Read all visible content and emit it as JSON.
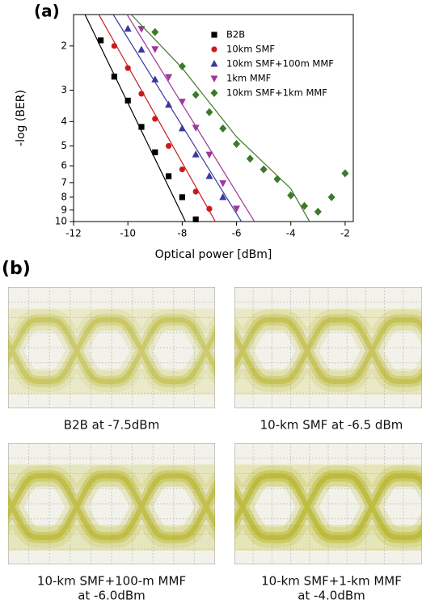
{
  "chart_data": {
    "type": "scatter",
    "panel_label": "(a)",
    "xlabel": "Optical power [dBm]",
    "ylabel": "-log (BER)",
    "xlim": [
      -12,
      -1.7
    ],
    "xticks": [
      -12,
      -10,
      -8,
      -6,
      -4,
      -2
    ],
    "ylim": [
      1.5,
      10
    ],
    "yticks": [
      2,
      3,
      4,
      5,
      6,
      7,
      8,
      9,
      10
    ],
    "log_scale": true,
    "y_inverted": true,
    "grid": false,
    "legend": "upper right",
    "series": [
      {
        "name": "B2B",
        "color": "#000000",
        "marker": "square",
        "x": [
          -11,
          -10.5,
          -10,
          -9.5,
          -9,
          -8.5,
          -8,
          -7.5
        ],
        "values": [
          1.9,
          2.65,
          3.3,
          4.2,
          5.3,
          6.6,
          8.0,
          9.8
        ],
        "fit_x": [
          -11.58,
          -7.88
        ],
        "fit_values": [
          1.5,
          10
        ]
      },
      {
        "name": "10km SMF",
        "color": "#cc1a1a",
        "marker": "circle",
        "x": [
          -10.5,
          -10,
          -9.5,
          -9,
          -8.5,
          -8,
          -7.5,
          -7
        ],
        "values": [
          2.0,
          2.45,
          3.1,
          3.9,
          5.0,
          6.2,
          7.6,
          8.9
        ],
        "fit_x": [
          -11.07,
          -6.78
        ],
        "fit_values": [
          1.5,
          10
        ]
      },
      {
        "name": "10km SMF+100m MMF",
        "color": "#3a3a9e",
        "marker": "triangle-up",
        "x": [
          -10,
          -9.5,
          -9,
          -8.5,
          -8,
          -7.5,
          -7,
          -6.5
        ],
        "values": [
          1.71,
          2.07,
          2.72,
          3.43,
          4.26,
          5.41,
          6.6,
          8.0
        ],
        "fit_x": [
          -10.54,
          -5.82
        ],
        "fit_values": [
          1.5,
          10
        ]
      },
      {
        "name": "1km MMF",
        "color": "#a0379e",
        "marker": "triangle-down",
        "x": [
          -9.5,
          -9,
          -8.5,
          -8,
          -7.5,
          -7,
          -6.5,
          -6
        ],
        "values": [
          1.71,
          2.06,
          2.66,
          3.33,
          4.23,
          5.41,
          7.03,
          8.87
        ],
        "fit_x": [
          -10.03,
          -5.34
        ],
        "fit_values": [
          1.5,
          10
        ]
      },
      {
        "name": "10km SMF+1km MMF",
        "color": "#3d7a2a",
        "marker": "diamond",
        "x": [
          -9,
          -8,
          -7.5,
          -7,
          -6.5,
          -6,
          -5.5,
          -5,
          -4.5,
          -4,
          -3.5,
          -3,
          -2.5,
          -2
        ],
        "values": [
          1.76,
          2.41,
          3.13,
          3.67,
          4.26,
          4.91,
          5.62,
          6.2,
          6.78,
          7.87,
          8.67,
          9.14,
          8.0,
          6.43
        ],
        "fit_x": [
          -9.88,
          -8,
          -6,
          -4,
          -3.31
        ],
        "fit_values": [
          1.5,
          2.45,
          4.6,
          7.4,
          10
        ]
      }
    ]
  },
  "eye_panel": {
    "panel_label": "(b)",
    "diagrams": [
      {
        "caption": [
          "B2B at -7.5dBm"
        ]
      },
      {
        "caption": [
          "10-km SMF at -6.5 dBm"
        ]
      },
      {
        "caption": [
          "10-km SMF+100-m MMF",
          "at -6.0dBm"
        ]
      },
      {
        "caption": [
          "10-km SMF+1-km MMF",
          "at -4.0dBm"
        ]
      }
    ]
  }
}
